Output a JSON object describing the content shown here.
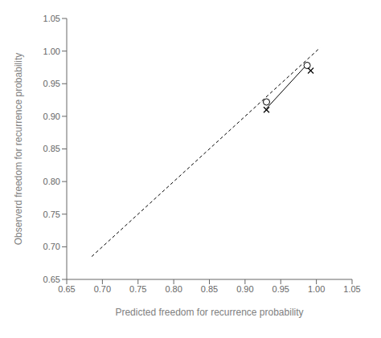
{
  "chart_data": {
    "type": "scatter",
    "xlabel": "Predicted  freedom for recurrence probability",
    "ylabel": "Observerd freedom for recurrence probability",
    "xlim": [
      0.65,
      1.05
    ],
    "ylim": [
      0.65,
      1.05
    ],
    "xticks": [
      0.65,
      {
        "value": 0.7,
        "label": "0.70"
      },
      0.75,
      {
        "value": 0.8,
        "label": "0.80"
      },
      0.85,
      {
        "value": 0.9,
        "label": "0.90"
      },
      0.95,
      {
        "value": 1.0,
        "label": "1.00"
      },
      1.05
    ],
    "yticks": [
      0.65,
      {
        "value": 0.7,
        "label": "0.70"
      },
      0.75,
      {
        "value": 0.8,
        "label": "0.80"
      },
      0.85,
      {
        "value": 0.9,
        "label": "0.90"
      },
      0.95,
      {
        "value": 1.0,
        "label": "1.00"
      },
      1.05
    ],
    "grid": false,
    "series": [
      {
        "type": "line",
        "line_style": "dashed",
        "color": "#000000",
        "x": [
          0.685,
          1.005
        ],
        "values": [
          0.685,
          1.005
        ]
      },
      {
        "type": "line",
        "line_style": "solid",
        "color": "#000000",
        "x": [
          0.93,
          0.983
        ],
        "values": [
          0.912,
          0.975
        ]
      },
      {
        "type": "scatter",
        "marker": "circle",
        "color": "#000000",
        "x": [
          0.93,
          0.987
        ],
        "values": [
          0.922,
          0.978
        ]
      },
      {
        "type": "scatter",
        "marker": "x",
        "color": "#000000",
        "x": [
          0.93,
          0.992
        ],
        "values": [
          0.91,
          0.97
        ]
      }
    ]
  }
}
